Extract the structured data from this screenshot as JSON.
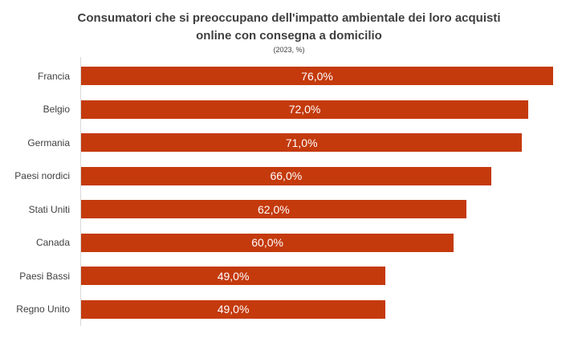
{
  "chart_data": {
    "type": "bar",
    "orientation": "horizontal",
    "title": "Consumatori che si preoccupano dell'impatto ambientale dei loro acquisti online con consegna a domicilio",
    "subtitle": "(2023, %)",
    "categories": [
      "Francia",
      "Belgio",
      "Germania",
      "Paesi nordici",
      "Stati Uniti",
      "Canada",
      "Paesi Bassi",
      "Regno Unito"
    ],
    "values": [
      76.0,
      72.0,
      71.0,
      66.0,
      62.0,
      60.0,
      49.0,
      49.0
    ],
    "value_labels": [
      "76,0%",
      "72,0%",
      "71,0%",
      "66,0%",
      "62,0%",
      "60,0%",
      "49,0%",
      "49,0%"
    ],
    "xlabel": "",
    "ylabel": "",
    "xlim": [
      0,
      80
    ],
    "grid": false,
    "legend_position": "none",
    "colors": {
      "bar": "#c43a0d",
      "value_label": "#ffffff",
      "category_label": "#404040",
      "title": "#3f3f3f",
      "axis_line": "#d9d9d9",
      "background": "#ffffff"
    }
  }
}
